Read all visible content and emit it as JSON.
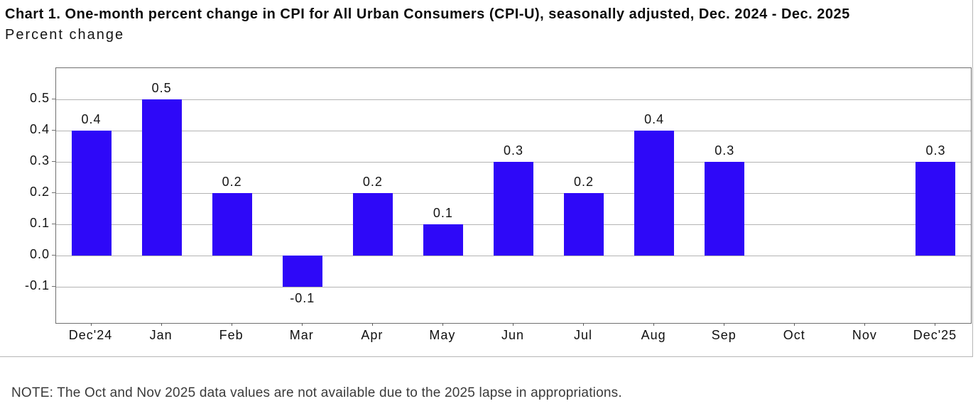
{
  "page": {
    "note": "NOTE: The Oct and Nov 2025 data values are not available due to the 2025 lapse in appropriations."
  },
  "colors": {
    "bar": "#2e08f8",
    "gridline": "#b3b3b3",
    "plot_frame": "#707070",
    "figure_border": "#b6b6b6",
    "note_text": "#3a3a3a"
  },
  "chart_data": {
    "type": "bar",
    "title": "Chart 1. One-month percent change in CPI for All Urban Consumers (CPI-U), seasonally adjusted, Dec. 2024 - Dec. 2025",
    "ylabel": "Percent change",
    "xlabel": "",
    "categories": [
      "Dec'24",
      "Jan",
      "Feb",
      "Mar",
      "Apr",
      "May",
      "Jun",
      "Jul",
      "Aug",
      "Sep",
      "Oct",
      "Nov",
      "Dec'25"
    ],
    "values": [
      0.4,
      0.5,
      0.2,
      -0.1,
      0.2,
      0.1,
      0.3,
      0.2,
      0.4,
      0.3,
      null,
      null,
      0.3
    ],
    "value_labels": [
      "0.4",
      "0.5",
      "0.2",
      "-0.1",
      "0.2",
      "0.1",
      "0.3",
      "0.2",
      "0.4",
      "0.3",
      "",
      "",
      "0.3"
    ],
    "missing_categories": [
      "Oct",
      "Nov"
    ],
    "yticks": [
      0.5,
      0.4,
      0.3,
      0.2,
      0.1,
      0.0,
      -0.1
    ],
    "ytick_labels": [
      "0.5",
      "0.4",
      "0.3",
      "0.2",
      "0.1",
      "0.0",
      "-0.1"
    ],
    "ylim": [
      -0.215,
      0.6
    ],
    "grid": "horizontal",
    "legend": "none",
    "bar_color": "#2e08f8"
  }
}
